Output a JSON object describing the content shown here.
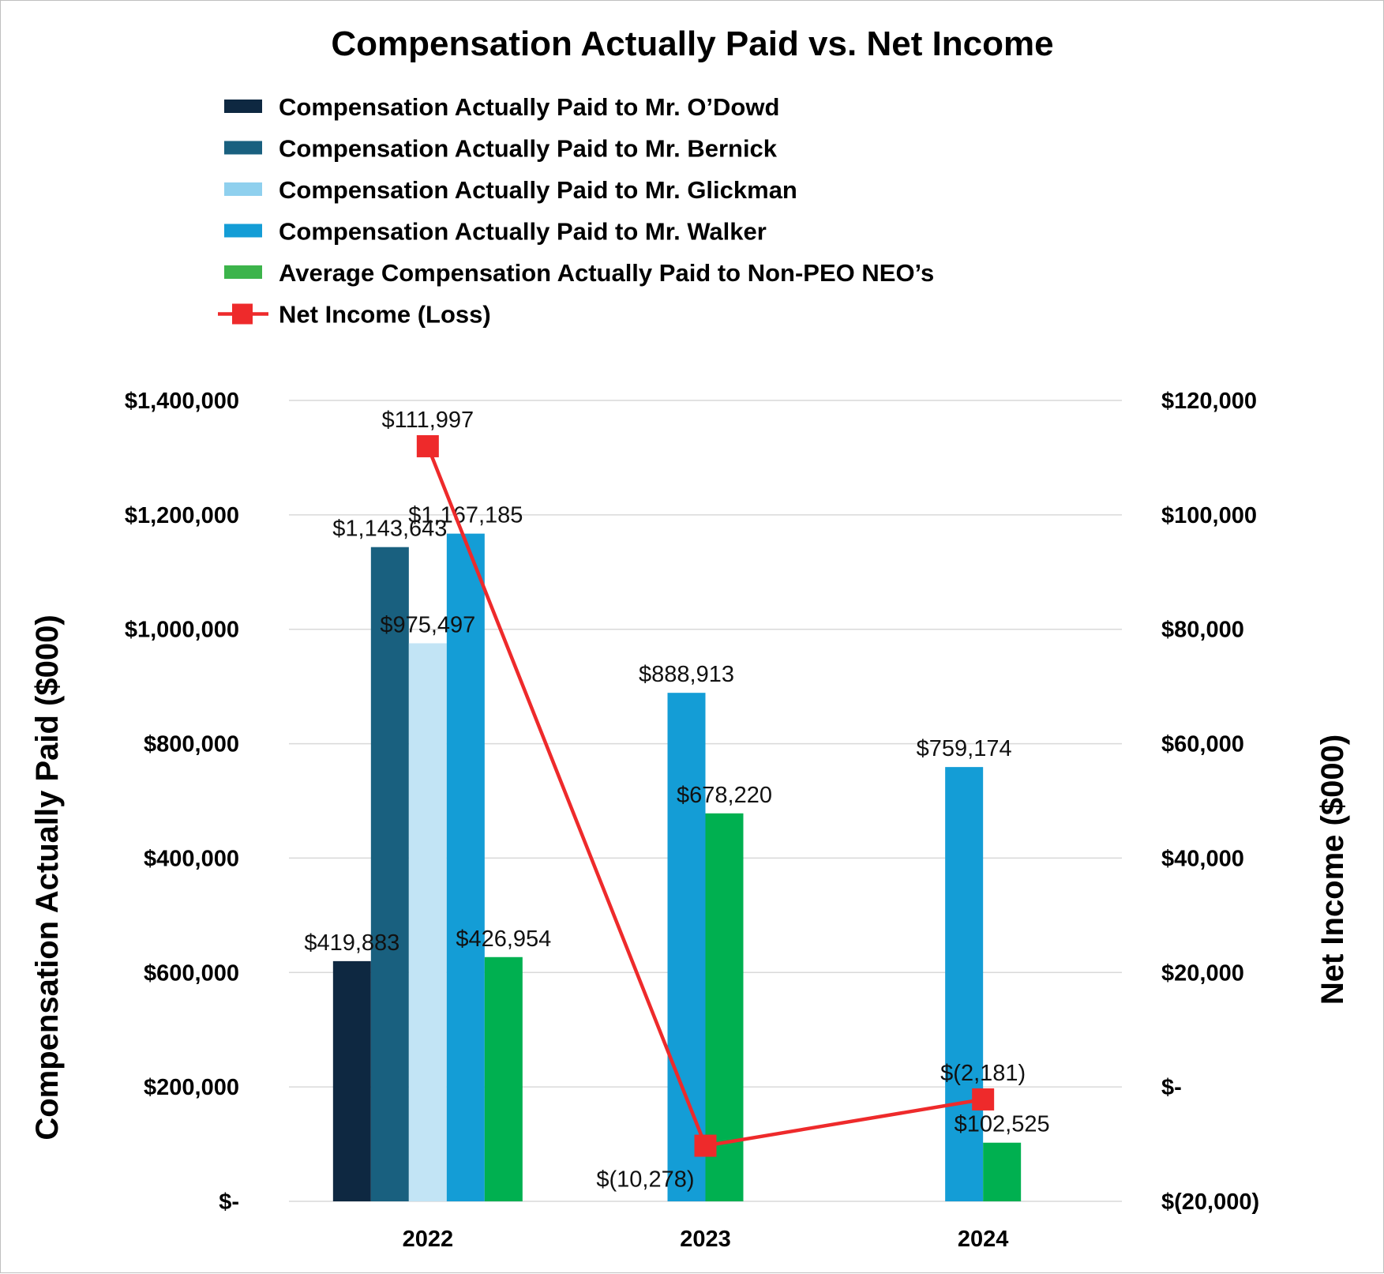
{
  "chart_data": {
    "type": "bar",
    "title": "Compensation Actually Paid vs. Net Income",
    "categories": [
      "2022",
      "2023",
      "2024"
    ],
    "left_axis": {
      "label": "Compensation Actually Paid ($000)",
      "ticks": [
        "$-",
        "$200,000",
        "$600,000",
        "$400,000",
        "$800,000",
        "$1,000,000",
        "$1,200,000",
        "$1,400,000"
      ]
    },
    "right_axis": {
      "label": "Net Income ($000)",
      "ylim": [
        -20000,
        120000
      ],
      "ticks": [
        "$(20,000)",
        "$-",
        "$20,000",
        "$40,000",
        "$60,000",
        "$80,000",
        "$100,000",
        "$120,000"
      ]
    },
    "series": [
      {
        "name": "Compensation Actually Paid to Mr. O’Dowd",
        "color": "#0e2841",
        "values": [
          419883,
          null,
          null
        ],
        "labels": [
          "$419,883",
          "",
          ""
        ]
      },
      {
        "name": "Compensation Actually Paid to Mr. Bernick",
        "color": "#19607f",
        "values": [
          1143643,
          null,
          null
        ],
        "labels": [
          "$1,143,643",
          "",
          ""
        ]
      },
      {
        "name": "Compensation Actually Paid to Mr. Glickman",
        "color": "#c2e4f5",
        "legend_color": "#8fd0ee",
        "values": [
          975497,
          null,
          null
        ],
        "labels": [
          "$975,497",
          "",
          ""
        ]
      },
      {
        "name": "Compensation Actually Paid to Mr. Walker",
        "color": "#149dd6",
        "values": [
          1167185,
          888913,
          759174
        ],
        "labels": [
          "$1,167,185",
          "$888,913",
          "$759,174"
        ]
      },
      {
        "name": "Average Compensation Actually Paid to Non-PEO NEO’s",
        "color": "#00b050",
        "legend_color": "#3cb44b",
        "values": [
          426954,
          678220,
          102525
        ],
        "labels": [
          "$426,954",
          "$678,220",
          "$102,525"
        ]
      }
    ],
    "line": {
      "name": "Net Income (Loss)",
      "color": "#ee2a2b",
      "values": [
        111997,
        -10278,
        -2181
      ],
      "labels": [
        "$111,997",
        "$(10,278)",
        "$(2,181)"
      ]
    }
  }
}
